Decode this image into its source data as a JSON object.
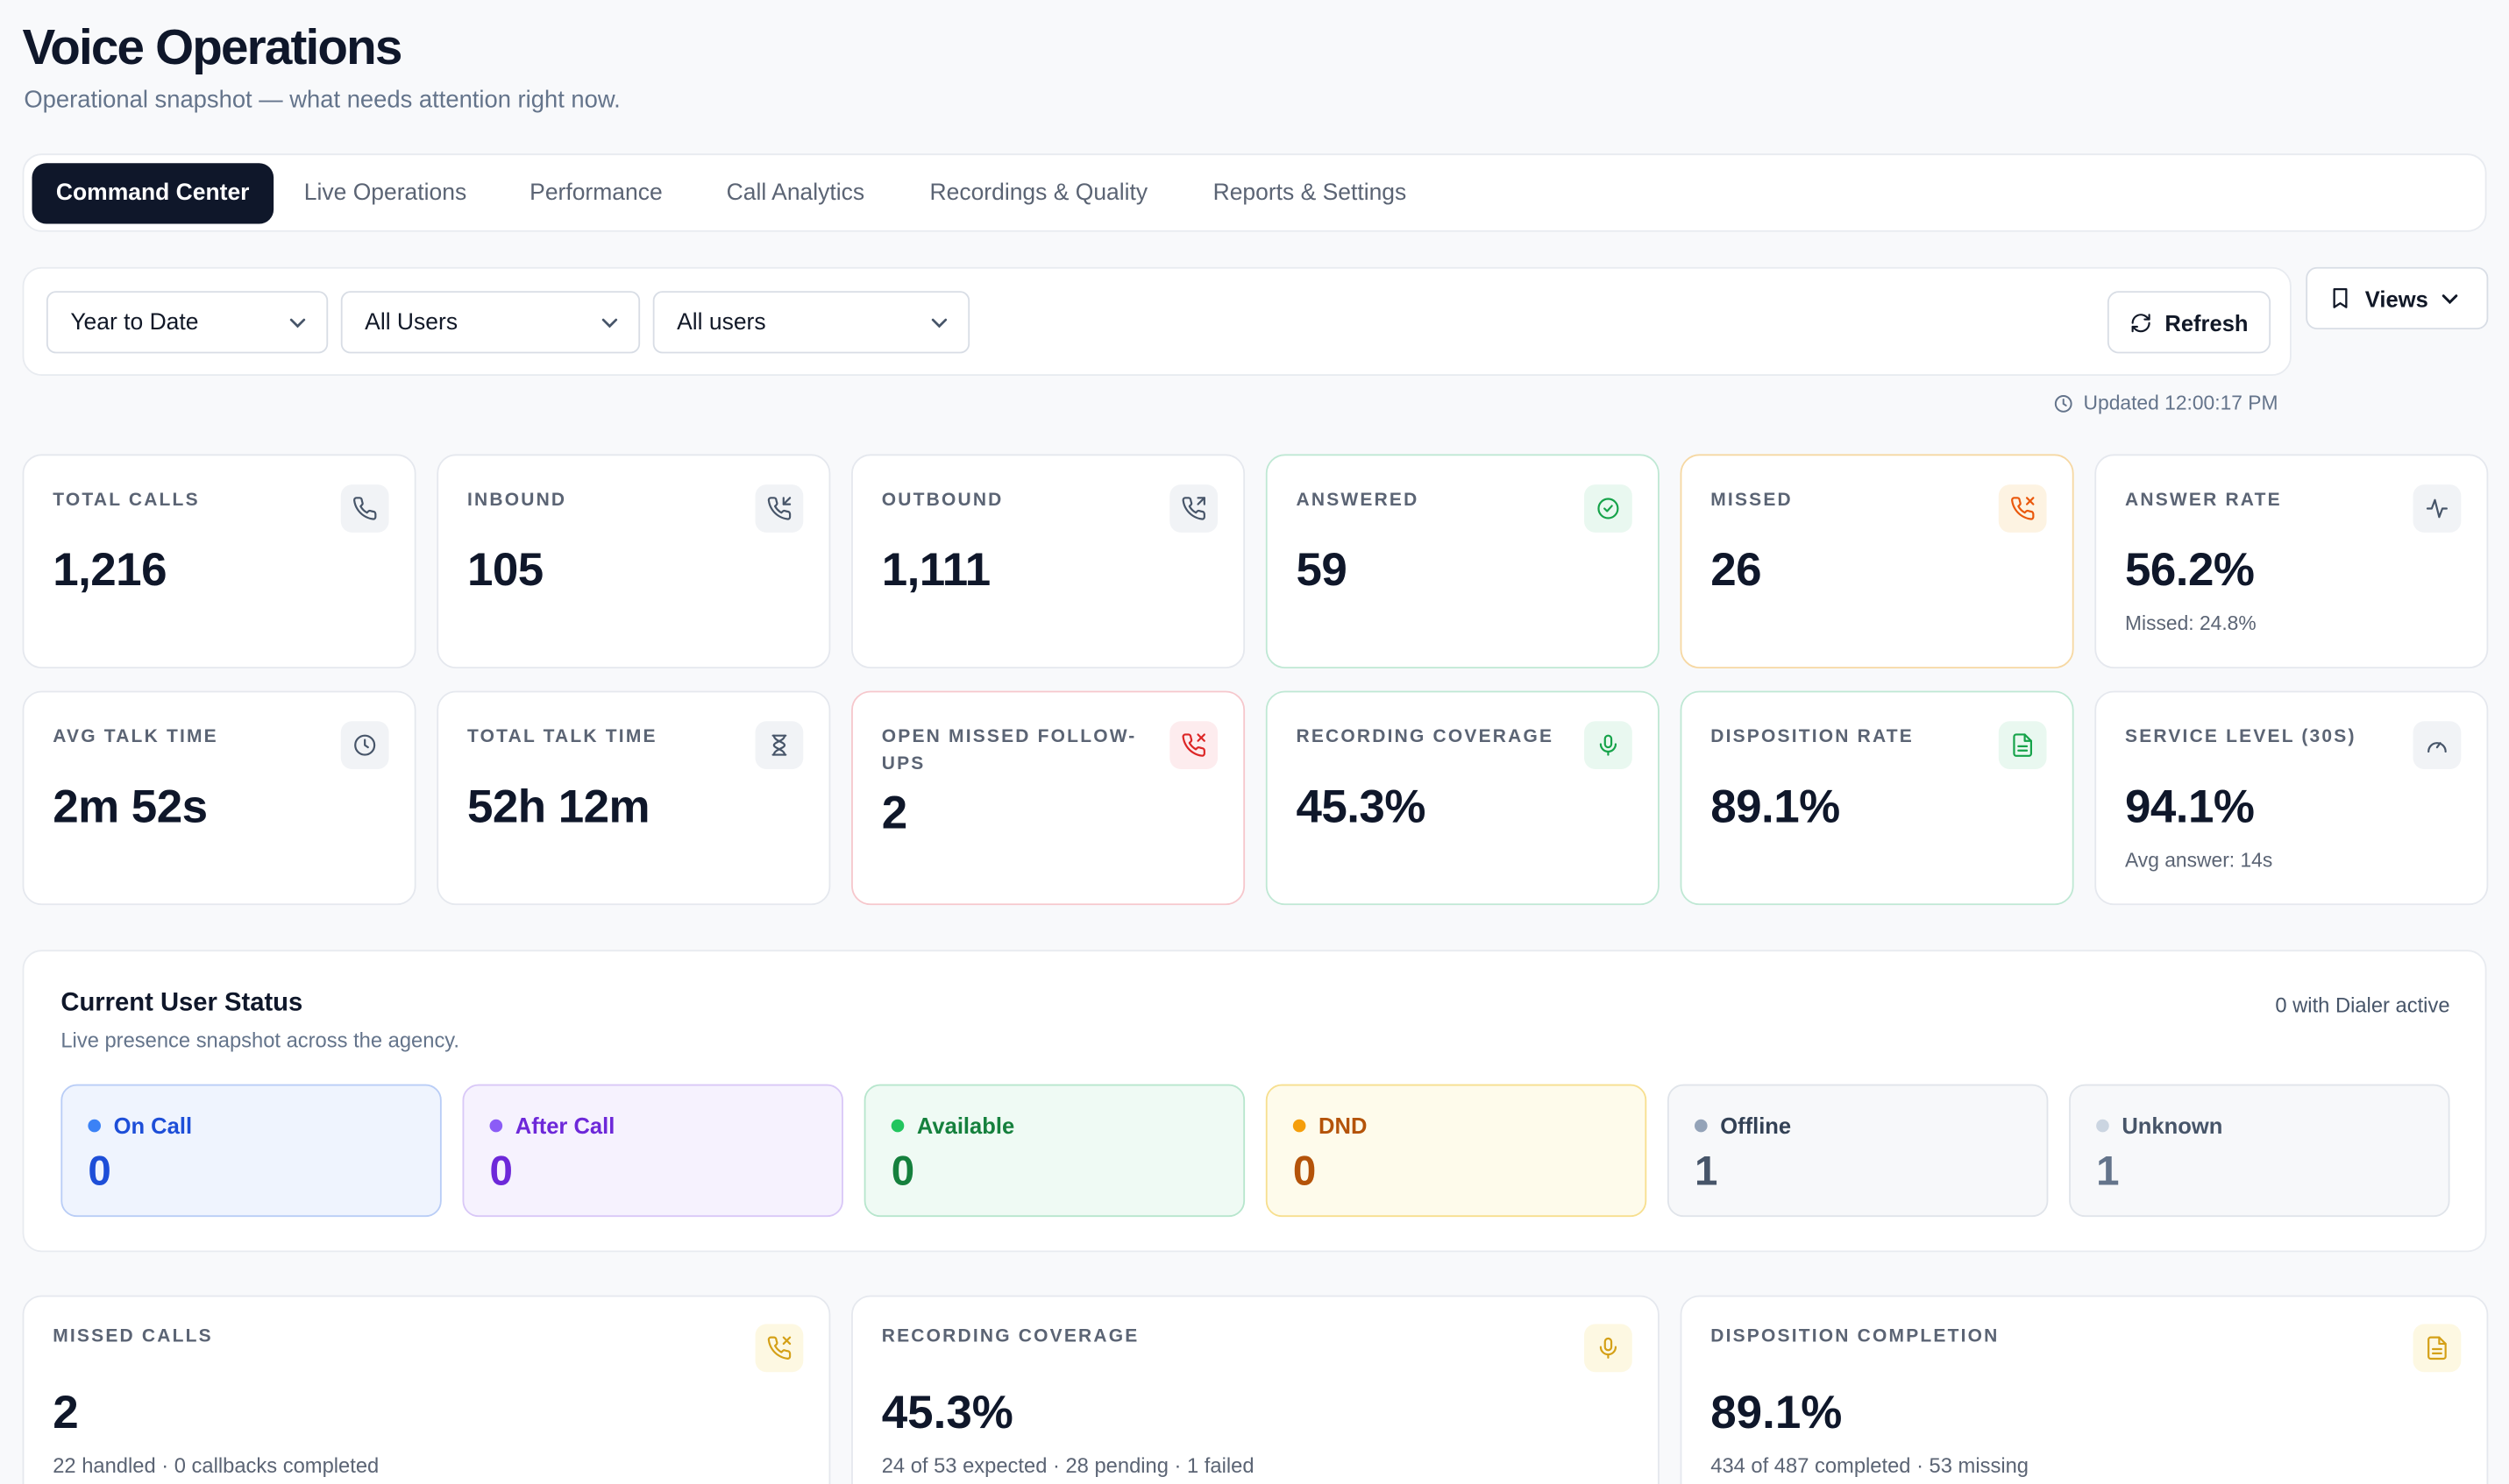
{
  "header": {
    "title": "Voice Operations",
    "subtitle": "Operational snapshot — what needs attention right now."
  },
  "tabs": [
    {
      "label": "Command Center",
      "active": true
    },
    {
      "label": "Live Operations"
    },
    {
      "label": "Performance"
    },
    {
      "label": "Call Analytics"
    },
    {
      "label": "Recordings & Quality"
    },
    {
      "label": "Reports & Settings"
    }
  ],
  "filters": {
    "period": "Year to Date",
    "users": "All Users",
    "user_filter": "All users",
    "refresh_label": "Refresh",
    "views_label": "Views",
    "updated": "Updated 12:00:17 PM"
  },
  "kpis": [
    {
      "label": "TOTAL CALLS",
      "value": "1,216",
      "icon": "phone-icon"
    },
    {
      "label": "INBOUND",
      "value": "105",
      "icon": "phone-incoming-icon"
    },
    {
      "label": "OUTBOUND",
      "value": "1,111",
      "icon": "phone-outgoing-icon"
    },
    {
      "label": "ANSWERED",
      "value": "59",
      "icon": "check-circle-icon"
    },
    {
      "label": "MISSED",
      "value": "26",
      "icon": "phone-missed-icon"
    },
    {
      "label": "ANSWER RATE",
      "value": "56.2%",
      "sub": "Missed: 24.8%",
      "icon": "activity-icon"
    },
    {
      "label": "AVG TALK TIME",
      "value": "2m 52s",
      "icon": "clock-icon"
    },
    {
      "label": "TOTAL TALK TIME",
      "value": "52h 12m",
      "icon": "hourglass-icon"
    },
    {
      "label": "OPEN MISSED FOLLOW-UPS",
      "value": "2",
      "icon": "phone-off-icon"
    },
    {
      "label": "RECORDING COVERAGE",
      "value": "45.3%",
      "icon": "mic-icon"
    },
    {
      "label": "DISPOSITION RATE",
      "value": "89.1%",
      "icon": "file-text-icon"
    },
    {
      "label": "SERVICE LEVEL (30S)",
      "value": "94.1%",
      "sub": "Avg answer: 14s",
      "icon": "gauge-icon"
    }
  ],
  "user_status": {
    "title": "Current User Status",
    "subtitle": "Live presence snapshot across the agency.",
    "dialer_note": "0 with Dialer active",
    "items": [
      {
        "label": "On Call",
        "value": "0"
      },
      {
        "label": "After Call",
        "value": "0"
      },
      {
        "label": "Available",
        "value": "0"
      },
      {
        "label": "DND",
        "value": "0"
      },
      {
        "label": "Offline",
        "value": "1"
      },
      {
        "label": "Unknown",
        "value": "1"
      }
    ]
  },
  "bottom_cards": [
    {
      "label": "MISSED CALLS",
      "value": "2",
      "sub": "22 handled · 0 callbacks completed",
      "icon": "phone-missed-icon"
    },
    {
      "label": "RECORDING COVERAGE",
      "value": "45.3%",
      "sub": "24 of 53 expected · 28 pending · 1 failed",
      "icon": "mic-icon"
    },
    {
      "label": "DISPOSITION COMPLETION",
      "value": "89.1%",
      "sub": "434 of 487 completed · 53 missing",
      "icon": "file-text-icon"
    }
  ]
}
